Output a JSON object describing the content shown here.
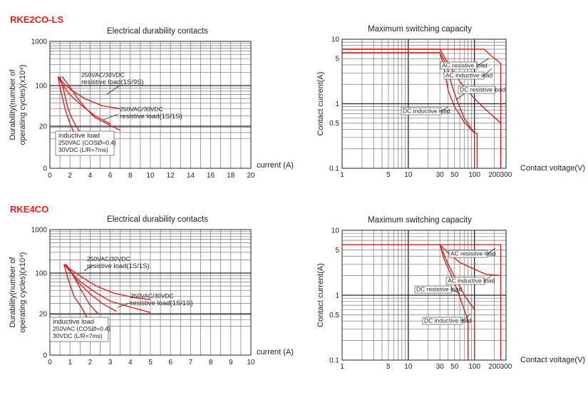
{
  "sections": [
    {
      "model": "RKE2CO-LS"
    },
    {
      "model": "RKE4CO"
    }
  ],
  "chart_data": [
    {
      "type": "line",
      "title": "Electrical durability contacts",
      "xlabel": "current (A)",
      "ylabel_line1": "Durability(number of",
      "ylabel_line2": "operating cycles)(x10⁴)",
      "xlim": [
        0,
        20
      ],
      "ylim": [
        0,
        1000
      ],
      "x_ticks": [
        "0",
        "2",
        "4",
        "6",
        "8",
        "10",
        "12",
        "14",
        "16",
        "18",
        "20"
      ],
      "y_ticks": [
        "0",
        "20",
        "100",
        "1000"
      ],
      "annotations": [
        {
          "lines": [
            "250VAC/30VDC",
            "resistive load(1S/9S)"
          ]
        },
        {
          "lines": [
            "250VAC/30VDC",
            "resistive load(1S/1S)"
          ]
        },
        {
          "lines": [
            "inductive load",
            "250VAC (COSØ=0.4)",
            "30VDC (L/R=7ms)"
          ]
        }
      ],
      "series": [
        {
          "x": [
            0.8,
            1.4,
            2.3,
            3.6,
            5.2,
            7.0
          ],
          "y": [
            160,
            110,
            80,
            58,
            45,
            40
          ]
        },
        {
          "x": [
            0.8,
            1.2,
            1.9,
            3.0,
            4.5,
            6.0
          ],
          "y": [
            160,
            110,
            72,
            48,
            30,
            22
          ]
        },
        {
          "x": [
            1.2,
            1.9,
            2.7,
            3.5,
            4.5,
            7.0
          ],
          "y": [
            160,
            100,
            62,
            42,
            28,
            18
          ]
        },
        {
          "x": [
            0.8,
            1.1,
            1.5,
            2.0,
            2.5
          ],
          "y": [
            160,
            80,
            40,
            22,
            16
          ]
        },
        {
          "x": [
            1.0,
            1.4,
            1.8,
            2.3,
            3.1
          ],
          "y": [
            160,
            80,
            40,
            25,
            16
          ]
        }
      ]
    },
    {
      "type": "line",
      "title": "Maximum switching capacity",
      "xlabel": "Contact voltage(V)",
      "ylabel": "Contact current(A)",
      "xscale": "log",
      "yscale": "log",
      "xlim": [
        1,
        300
      ],
      "ylim": [
        0.1,
        10
      ],
      "x_ticks": [
        "1",
        "5",
        "10",
        "30",
        "50",
        "100",
        "200",
        "300"
      ],
      "y_ticks": [
        "0.1",
        "0.5",
        "1",
        "5",
        "10"
      ],
      "annotations": [
        {
          "text": "AC resistive load"
        },
        {
          "text": "AC inductive load"
        },
        {
          "text": "DC resistive load"
        },
        {
          "text": "DC inductive load"
        }
      ],
      "series": [
        {
          "x": [
            1,
            30,
            40,
            60,
            100,
            150,
            250,
            250
          ],
          "y": [
            7,
            7,
            4.2,
            2.2,
            1.2,
            0.8,
            0.5,
            0.1
          ]
        },
        {
          "x": [
            1,
            140,
            180,
            250,
            250
          ],
          "y": [
            7,
            7,
            5.5,
            4.2,
            0.1
          ]
        },
        {
          "x": [
            1,
            30,
            38,
            45,
            55,
            70,
            100,
            100
          ],
          "y": [
            6.2,
            6.2,
            4.0,
            2.0,
            1.1,
            0.6,
            0.35,
            0.1
          ]
        },
        {
          "x": [
            1,
            30,
            34,
            40,
            50,
            70,
            100,
            110,
            110
          ],
          "y": [
            6.2,
            6.2,
            4.0,
            1.6,
            0.9,
            0.52,
            0.35,
            0.35,
            0.1
          ]
        }
      ]
    },
    {
      "type": "line",
      "title": "Electrical durability contacts",
      "xlabel": "current (A)",
      "ylabel_line1": "Durability(number of",
      "ylabel_line2": "operating cycles)(x10⁴)",
      "xlim": [
        0,
        10
      ],
      "ylim": [
        0,
        1000
      ],
      "x_ticks": [
        "0",
        "1",
        "2",
        "3",
        "4",
        "5",
        "6",
        "7",
        "8",
        "9",
        "10"
      ],
      "y_ticks": [
        "0",
        "20",
        "100",
        "1000"
      ],
      "annotations": [
        {
          "lines": [
            "250VAC/30VDC",
            "resistive load(1S/1S)"
          ]
        },
        {
          "lines": [
            "250VAC/30VDC",
            "resistive load(1S/1S)"
          ]
        },
        {
          "lines": [
            "inductive load",
            "250VAC (COSØ=0.4)",
            "30VDC (L/R=7ms)"
          ]
        }
      ],
      "series": [
        {
          "x": [
            0.7,
            1.1,
            1.6,
            2.3,
            3.2,
            4.2,
            5.0
          ],
          "y": [
            160,
            115,
            85,
            60,
            45,
            38,
            35
          ]
        },
        {
          "x": [
            0.7,
            1.0,
            1.5,
            2.2,
            3.0,
            4.0,
            5.0
          ],
          "y": [
            160,
            110,
            72,
            48,
            33,
            26,
            21
          ]
        },
        {
          "x": [
            0.7,
            1.0,
            1.4,
            2.0,
            2.6,
            3.3
          ],
          "y": [
            160,
            110,
            70,
            44,
            30,
            22
          ]
        },
        {
          "x": [
            0.8,
            1.1,
            1.5,
            2.0,
            2.4
          ],
          "y": [
            160,
            100,
            55,
            28,
            20
          ]
        },
        {
          "x": [
            0.7,
            0.9,
            1.2,
            1.6,
            2.0
          ],
          "y": [
            160,
            80,
            40,
            25,
            15
          ]
        }
      ]
    },
    {
      "type": "line",
      "title": "Maximum switching capacity",
      "xlabel": "Contact voltage(V)",
      "ylabel": "Contact current(A)",
      "xscale": "log",
      "yscale": "log",
      "xlim": [
        1,
        300
      ],
      "ylim": [
        0.1,
        10
      ],
      "x_ticks": [
        "1",
        "5",
        "10",
        "30",
        "50",
        "100",
        "200",
        "300"
      ],
      "y_ticks": [
        "0.1",
        "0.5",
        "1",
        "5",
        "10"
      ],
      "annotations": [
        {
          "text": "AC resistive load"
        },
        {
          "text": "AC inductive load"
        },
        {
          "text": "DC resistive load"
        },
        {
          "text": "DC inductive load"
        }
      ],
      "series": [
        {
          "x": [
            1,
            250,
            250
          ],
          "y": [
            6,
            6,
            0.1
          ]
        },
        {
          "x": [
            1,
            30,
            40,
            60,
            100,
            150,
            250
          ],
          "y": [
            6,
            6,
            4.5,
            3.2,
            2.5,
            2.1,
            2.0
          ]
        },
        {
          "x": [
            1,
            30,
            35,
            45,
            55,
            70,
            80,
            80
          ],
          "y": [
            6,
            6,
            3.5,
            2.0,
            1.2,
            0.6,
            0.4,
            0.1
          ]
        },
        {
          "x": [
            1,
            30,
            40,
            55,
            75,
            100,
            100
          ],
          "y": [
            6,
            6,
            3.0,
            1.6,
            0.9,
            0.6,
            0.1
          ]
        }
      ]
    }
  ]
}
